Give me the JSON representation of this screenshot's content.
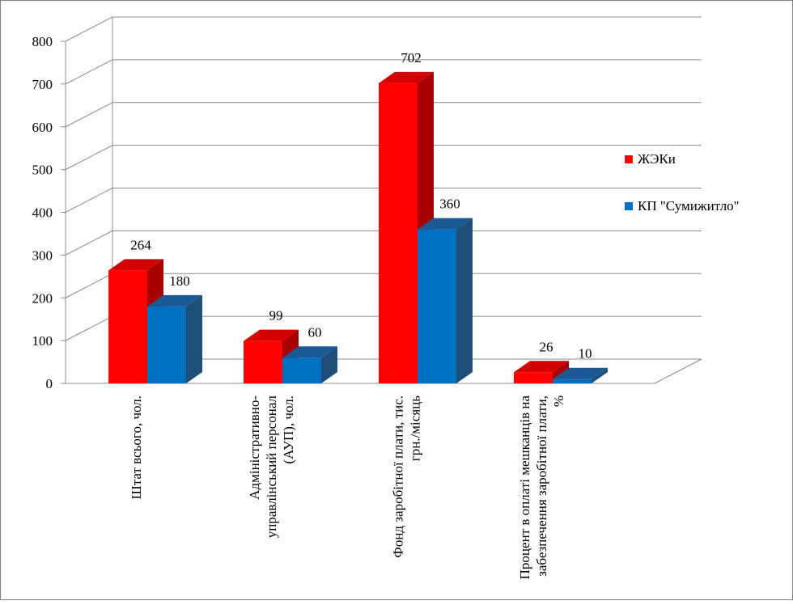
{
  "chart_data": {
    "type": "bar",
    "title": "",
    "xlabel": "",
    "ylabel": "",
    "ylim": [
      0,
      800
    ],
    "yticks": [
      0,
      100,
      200,
      300,
      400,
      500,
      600,
      700,
      800
    ],
    "grid": true,
    "legend_position": "right",
    "categories": [
      "Штат всього, чол.",
      "Адміністративно-управлінський персонал (АУП), чол.",
      "Фонд заробітної плати, тис. грн./місяць",
      "Процент в оплаті мешканців на забезпечення заробітної плати, %"
    ],
    "category_label_lines": [
      [
        "Штат всього, чол."
      ],
      [
        "Адміністративно-",
        "управлінський персонал",
        "(АУП), чол."
      ],
      [
        "Фонд заробітної плати, тис.",
        "грн./місяць"
      ],
      [
        "Процент в оплаті мешканців на",
        "забезпечення заробітної плати,",
        "%"
      ]
    ],
    "series": [
      {
        "name": "ЖЭКи",
        "values": [
          264,
          99,
          702,
          26
        ],
        "color": "#ff0000",
        "side_color": "#a80000",
        "top_color": "#d40000"
      },
      {
        "name": "КП \"Сумижитло\"",
        "values": [
          180,
          60,
          360,
          10
        ],
        "color": "#0070c0",
        "side_color": "#1f4e79",
        "top_color": "#1a5a94"
      }
    ]
  }
}
